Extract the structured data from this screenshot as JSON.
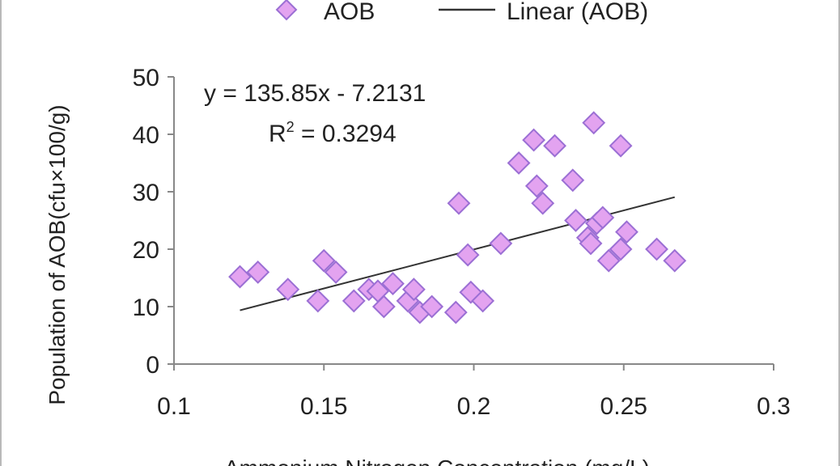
{
  "chart_data": {
    "type": "scatter",
    "xlabel": "Ammonium Nitrogen Concentration (mg/L)",
    "ylabel": "Population of AOB(cfu×100/g)",
    "xlim": [
      0.1,
      0.3
    ],
    "ylim": [
      0,
      50
    ],
    "xticks": [
      "0.1",
      "0.15",
      "0.2",
      "0.25",
      "0.3"
    ],
    "yticks": [
      "0",
      "10",
      "20",
      "30",
      "40",
      "50"
    ],
    "grid": false,
    "legend": {
      "position": "top",
      "entries": [
        {
          "label": "AOB",
          "marker": "diamond",
          "color": "#e3a3f0",
          "edge": "#9b6fd4"
        },
        {
          "label": "Linear (AOB)",
          "marker": "line",
          "color": "#333333"
        }
      ]
    },
    "trendline": {
      "equation": "y = 135.85x - 7.2131",
      "r2_label": "R",
      "r2_sup": "2",
      "r2_value": " = 0.3294",
      "slope": 135.85,
      "intercept": -7.2131,
      "x_range": [
        0.122,
        0.267
      ]
    },
    "series": [
      {
        "name": "AOB",
        "points": [
          [
            0.122,
            15.2
          ],
          [
            0.128,
            16
          ],
          [
            0.138,
            13
          ],
          [
            0.148,
            11
          ],
          [
            0.15,
            18
          ],
          [
            0.154,
            16
          ],
          [
            0.16,
            11
          ],
          [
            0.165,
            13
          ],
          [
            0.168,
            12.7
          ],
          [
            0.17,
            10
          ],
          [
            0.173,
            14
          ],
          [
            0.178,
            11
          ],
          [
            0.18,
            13
          ],
          [
            0.182,
            9
          ],
          [
            0.186,
            10
          ],
          [
            0.194,
            9
          ],
          [
            0.195,
            28
          ],
          [
            0.198,
            19
          ],
          [
            0.199,
            12.5
          ],
          [
            0.203,
            11
          ],
          [
            0.209,
            21
          ],
          [
            0.215,
            35
          ],
          [
            0.22,
            39
          ],
          [
            0.221,
            31
          ],
          [
            0.223,
            28
          ],
          [
            0.227,
            38
          ],
          [
            0.233,
            32
          ],
          [
            0.234,
            25
          ],
          [
            0.238,
            22
          ],
          [
            0.239,
            21
          ],
          [
            0.24,
            42
          ],
          [
            0.241,
            24.5
          ],
          [
            0.243,
            25.5
          ],
          [
            0.245,
            18
          ],
          [
            0.249,
            20
          ],
          [
            0.249,
            38
          ],
          [
            0.251,
            23
          ],
          [
            0.261,
            20
          ],
          [
            0.267,
            18
          ]
        ]
      }
    ]
  }
}
